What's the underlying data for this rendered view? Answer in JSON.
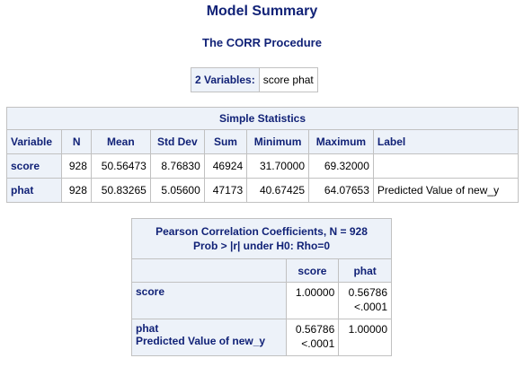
{
  "titles": {
    "main": "Model Summary",
    "procedure": "The CORR Procedure"
  },
  "variables_box": {
    "label": "2 Variables:",
    "value": "score phat"
  },
  "simple_stats": {
    "caption": "Simple Statistics",
    "headers": [
      "Variable",
      "N",
      "Mean",
      "Std Dev",
      "Sum",
      "Minimum",
      "Maximum",
      "Label"
    ],
    "rows": [
      {
        "variable": "score",
        "n": "928",
        "mean": "50.56473",
        "std": "8.76830",
        "sum": "46924",
        "min": "31.70000",
        "max": "69.32000",
        "label": ""
      },
      {
        "variable": "phat",
        "n": "928",
        "mean": "50.83265",
        "std": "5.05600",
        "sum": "47173",
        "min": "40.67425",
        "max": "64.07653",
        "label": "Predicted Value of new_y"
      }
    ]
  },
  "pearson": {
    "caption_line1": "Pearson Correlation Coefficients, N = 928",
    "caption_line2": "Prob > |r| under H0: Rho=0",
    "col_headers": [
      "score",
      "phat"
    ],
    "rows": [
      {
        "name": "score",
        "label": "",
        "cells": [
          {
            "r": "1.00000",
            "p": ""
          },
          {
            "r": "0.56786",
            "p": "<.0001"
          }
        ]
      },
      {
        "name": "phat",
        "label": "Predicted Value of new_y",
        "cells": [
          {
            "r": "0.56786",
            "p": "<.0001"
          },
          {
            "r": "1.00000",
            "p": ""
          }
        ]
      }
    ]
  },
  "colors": {
    "header_bg": "#edf2f9",
    "header_text": "#112277",
    "border": "#c1c1c1"
  }
}
